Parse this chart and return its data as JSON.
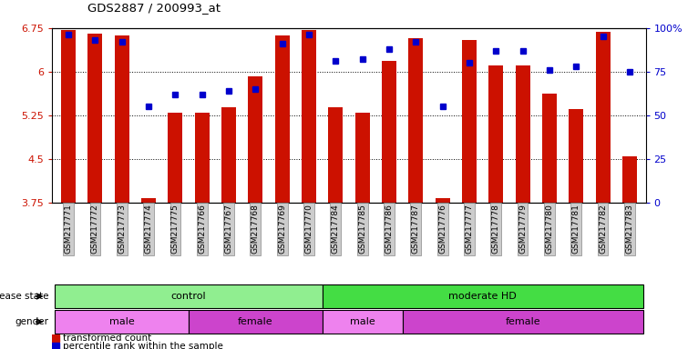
{
  "title": "GDS2887 / 200993_at",
  "samples": [
    "GSM217771",
    "GSM217772",
    "GSM217773",
    "GSM217774",
    "GSM217775",
    "GSM217766",
    "GSM217767",
    "GSM217768",
    "GSM217769",
    "GSM217770",
    "GSM217784",
    "GSM217785",
    "GSM217786",
    "GSM217787",
    "GSM217776",
    "GSM217777",
    "GSM217778",
    "GSM217779",
    "GSM217780",
    "GSM217781",
    "GSM217782",
    "GSM217783"
  ],
  "transformed_count": [
    6.72,
    6.65,
    6.62,
    3.83,
    5.3,
    5.3,
    5.38,
    5.92,
    6.62,
    6.72,
    5.38,
    5.3,
    6.18,
    6.58,
    3.83,
    6.55,
    6.1,
    6.1,
    5.62,
    5.35,
    6.68,
    4.55
  ],
  "percentile_rank": [
    96,
    93,
    92,
    55,
    62,
    62,
    64,
    65,
    91,
    96,
    81,
    82,
    88,
    92,
    55,
    80,
    87,
    87,
    76,
    78,
    95,
    75
  ],
  "ymin": 3.75,
  "ymax": 6.75,
  "yticks": [
    3.75,
    4.5,
    5.25,
    6.0,
    6.75
  ],
  "ytick_labels": [
    "3.75",
    "4.5",
    "5.25",
    "6",
    "6.75"
  ],
  "right_yticks": [
    0,
    25,
    50,
    75,
    100
  ],
  "right_ytick_labels": [
    "0",
    "25",
    "50",
    "75",
    "100%"
  ],
  "bar_color": "#cc1100",
  "square_color": "#0000cc",
  "disease_state_groups": [
    {
      "label": "control",
      "start": 0,
      "end": 9,
      "color": "#90ee90"
    },
    {
      "label": "moderate HD",
      "start": 10,
      "end": 21,
      "color": "#44dd44"
    }
  ],
  "gender_groups": [
    {
      "label": "male",
      "start": 0,
      "end": 4,
      "color": "#ee82ee"
    },
    {
      "label": "female",
      "start": 5,
      "end": 9,
      "color": "#cc44cc"
    },
    {
      "label": "male",
      "start": 10,
      "end": 12,
      "color": "#ee82ee"
    },
    {
      "label": "female",
      "start": 13,
      "end": 21,
      "color": "#cc44cc"
    }
  ],
  "legend": [
    {
      "label": "transformed count",
      "color": "#cc1100"
    },
    {
      "label": "percentile rank within the sample",
      "color": "#0000cc"
    }
  ],
  "label_color_left": "#cc1100",
  "label_color_right": "#0000cc"
}
